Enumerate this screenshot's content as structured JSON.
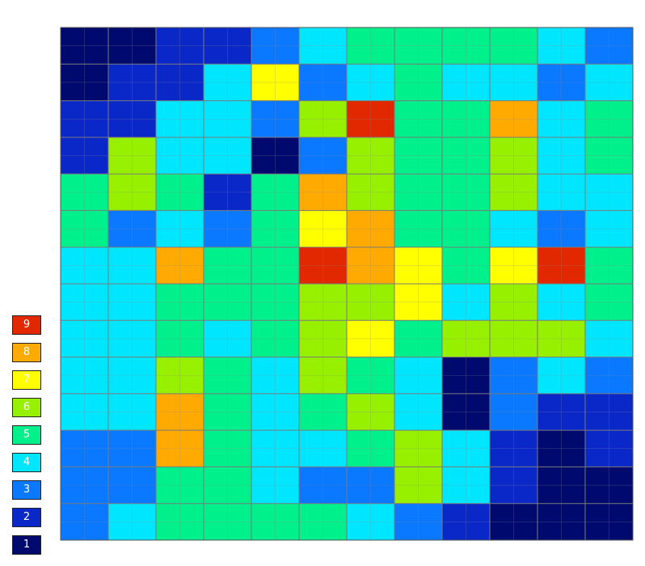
{
  "chart_data": {
    "type": "heatmap",
    "title": "",
    "xlabel": "",
    "ylabel": "",
    "colors": {
      "1": "#000a6e",
      "2": "#0a28c8",
      "3": "#0a78ff",
      "4": "#00e6ff",
      "5": "#00f08c",
      "6": "#96f000",
      "7": "#ffff00",
      "8": "#ffaa00",
      "9": "#e12800"
    },
    "legend": {
      "labels": [
        "9",
        "8",
        "7",
        "6",
        "5",
        "4",
        "3",
        "2",
        "1"
      ]
    },
    "grid_rows": [
      [
        1,
        1,
        2,
        2,
        3,
        4,
        5,
        5,
        5,
        5,
        4,
        3
      ],
      [
        1,
        2,
        2,
        4,
        7,
        3,
        4,
        5,
        4,
        4,
        3,
        4
      ],
      [
        2,
        2,
        4,
        4,
        3,
        6,
        9,
        5,
        5,
        8,
        4,
        5
      ],
      [
        2,
        6,
        4,
        4,
        1,
        3,
        6,
        5,
        5,
        6,
        4,
        5
      ],
      [
        5,
        6,
        5,
        2,
        5,
        8,
        6,
        5,
        5,
        6,
        4,
        4
      ],
      [
        5,
        3,
        4,
        3,
        5,
        7,
        8,
        5,
        5,
        4,
        3,
        4
      ],
      [
        4,
        4,
        8,
        5,
        5,
        9,
        8,
        7,
        5,
        7,
        9,
        5
      ],
      [
        4,
        4,
        5,
        5,
        5,
        6,
        6,
        7,
        4,
        6,
        4,
        5
      ],
      [
        4,
        4,
        5,
        4,
        5,
        6,
        7,
        5,
        6,
        6,
        6,
        4
      ],
      [
        4,
        4,
        6,
        5,
        4,
        6,
        5,
        4,
        1,
        3,
        4,
        3
      ],
      [
        4,
        4,
        8,
        5,
        4,
        5,
        6,
        4,
        1,
        3,
        2,
        2
      ],
      [
        3,
        3,
        8,
        5,
        4,
        4,
        5,
        6,
        4,
        2,
        1,
        2
      ],
      [
        3,
        3,
        5,
        5,
        4,
        3,
        3,
        6,
        4,
        2,
        1,
        1
      ],
      [
        3,
        4,
        5,
        5,
        5,
        5,
        4,
        3,
        2,
        1,
        1,
        1
      ]
    ]
  }
}
